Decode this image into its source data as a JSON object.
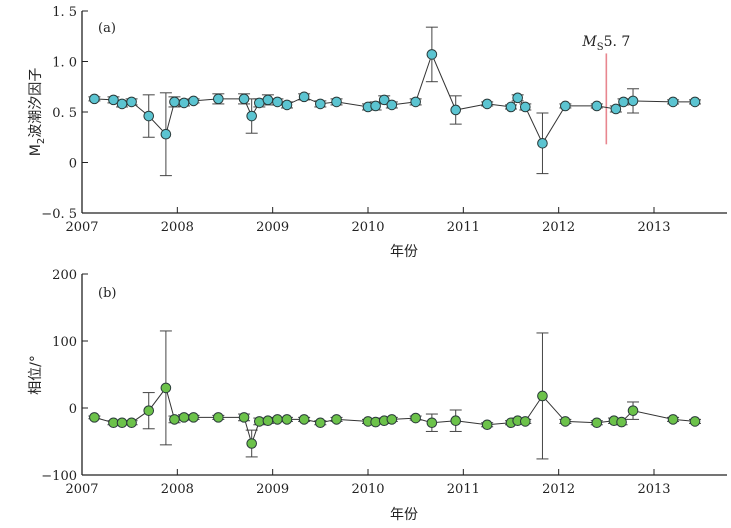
{
  "chart_data": [
    {
      "type": "line",
      "panel_label": "(a)",
      "ylabel_main": "M",
      "ylabel_sub": "2",
      "ylabel_rest": "波潮汐因子",
      "xlabel": "年份",
      "xlim": [
        2007,
        2013.75
      ],
      "ylim": [
        -0.5,
        1.5
      ],
      "yticks": [
        1.5,
        1.0,
        0.5,
        0,
        -0.5
      ],
      "ytick_labels": [
        "1. 5",
        "1. 0",
        "0. 5",
        "0",
        "−0. 5"
      ],
      "xticks": [
        2007,
        2008,
        2009,
        2010,
        2011,
        2012,
        2013
      ],
      "xtick_labels": [
        "2007",
        "2008",
        "2009",
        "2010",
        "2011",
        "2012",
        "2013"
      ],
      "marker_color": "#5bc4d1",
      "annotation": {
        "label_main": "M",
        "label_sub": "S",
        "label_rest": "5. 7",
        "x": 2012.5,
        "y_from": 0.18,
        "y_to": 1.07,
        "color": "#e8868f"
      },
      "series": [
        {
          "name": "M2 tidal factor",
          "points": [
            {
              "x": 2007.13,
              "y": 0.63,
              "err": 0.02
            },
            {
              "x": 2007.33,
              "y": 0.62,
              "err": 0.03
            },
            {
              "x": 2007.42,
              "y": 0.58,
              "err": 0.03
            },
            {
              "x": 2007.52,
              "y": 0.6,
              "err": 0.03
            },
            {
              "x": 2007.7,
              "y": 0.46,
              "err": 0.21
            },
            {
              "x": 2007.88,
              "y": 0.28,
              "err": 0.41
            },
            {
              "x": 2007.97,
              "y": 0.6,
              "err": 0.05
            },
            {
              "x": 2008.07,
              "y": 0.59,
              "err": 0.03
            },
            {
              "x": 2008.17,
              "y": 0.61,
              "err": 0.02
            },
            {
              "x": 2008.43,
              "y": 0.63,
              "err": 0.05
            },
            {
              "x": 2008.7,
              "y": 0.63,
              "err": 0.05
            },
            {
              "x": 2008.78,
              "y": 0.46,
              "err": 0.17
            },
            {
              "x": 2008.86,
              "y": 0.59,
              "err": 0.04
            },
            {
              "x": 2008.95,
              "y": 0.62,
              "err": 0.05
            },
            {
              "x": 2009.05,
              "y": 0.6,
              "err": 0.03
            },
            {
              "x": 2009.15,
              "y": 0.57,
              "err": 0.03
            },
            {
              "x": 2009.33,
              "y": 0.65,
              "err": 0.03
            },
            {
              "x": 2009.5,
              "y": 0.58,
              "err": 0.03
            },
            {
              "x": 2009.67,
              "y": 0.6,
              "err": 0.03
            },
            {
              "x": 2010.0,
              "y": 0.55,
              "err": 0.03
            },
            {
              "x": 2010.08,
              "y": 0.56,
              "err": 0.04
            },
            {
              "x": 2010.17,
              "y": 0.62,
              "err": 0.04
            },
            {
              "x": 2010.25,
              "y": 0.57,
              "err": 0.03
            },
            {
              "x": 2010.5,
              "y": 0.6,
              "err": 0.03
            },
            {
              "x": 2010.67,
              "y": 1.07,
              "err": 0.27
            },
            {
              "x": 2010.92,
              "y": 0.52,
              "err": 0.14
            },
            {
              "x": 2011.25,
              "y": 0.58,
              "err": 0.02
            },
            {
              "x": 2011.5,
              "y": 0.55,
              "err": 0.02
            },
            {
              "x": 2011.57,
              "y": 0.64,
              "err": 0.03
            },
            {
              "x": 2011.65,
              "y": 0.55,
              "err": 0.03
            },
            {
              "x": 2011.83,
              "y": 0.19,
              "err": 0.3
            },
            {
              "x": 2012.07,
              "y": 0.56,
              "err": 0.02
            },
            {
              "x": 2012.4,
              "y": 0.56,
              "err": 0.02
            },
            {
              "x": 2012.6,
              "y": 0.53,
              "err": 0.03
            },
            {
              "x": 2012.68,
              "y": 0.6,
              "err": 0.03
            },
            {
              "x": 2012.78,
              "y": 0.61,
              "err": 0.12
            },
            {
              "x": 2013.2,
              "y": 0.6,
              "err": 0.02
            },
            {
              "x": 2013.43,
              "y": 0.6,
              "err": 0.02
            }
          ]
        }
      ]
    },
    {
      "type": "line",
      "panel_label": "(b)",
      "ylabel": "相位/°",
      "xlabel": "年份",
      "xlim": [
        2007,
        2013.75
      ],
      "ylim": [
        -100,
        200
      ],
      "yticks": [
        200,
        100,
        0,
        -100
      ],
      "ytick_labels": [
        "200",
        "100",
        "0",
        "−100"
      ],
      "xticks": [
        2007,
        2008,
        2009,
        2010,
        2011,
        2012,
        2013
      ],
      "xtick_labels": [
        "2007",
        "2008",
        "2009",
        "2010",
        "2011",
        "2012",
        "2013"
      ],
      "marker_color": "#6cc24a",
      "series": [
        {
          "name": "Phase",
          "points": [
            {
              "x": 2007.13,
              "y": -14,
              "err": 2
            },
            {
              "x": 2007.33,
              "y": -22,
              "err": 3
            },
            {
              "x": 2007.42,
              "y": -22,
              "err": 3
            },
            {
              "x": 2007.52,
              "y": -22,
              "err": 3
            },
            {
              "x": 2007.7,
              "y": -4,
              "err": 27
            },
            {
              "x": 2007.88,
              "y": 30,
              "err": 85
            },
            {
              "x": 2007.97,
              "y": -17,
              "err": 5
            },
            {
              "x": 2008.07,
              "y": -14,
              "err": 4
            },
            {
              "x": 2008.17,
              "y": -14,
              "err": 3
            },
            {
              "x": 2008.43,
              "y": -14,
              "err": 3
            },
            {
              "x": 2008.7,
              "y": -14,
              "err": 5
            },
            {
              "x": 2008.78,
              "y": -53,
              "err": 20
            },
            {
              "x": 2008.86,
              "y": -20,
              "err": 5
            },
            {
              "x": 2008.95,
              "y": -19,
              "err": 4
            },
            {
              "x": 2009.05,
              "y": -17,
              "err": 3
            },
            {
              "x": 2009.15,
              "y": -17,
              "err": 3
            },
            {
              "x": 2009.33,
              "y": -17,
              "err": 3
            },
            {
              "x": 2009.5,
              "y": -22,
              "err": 3
            },
            {
              "x": 2009.67,
              "y": -17,
              "err": 3
            },
            {
              "x": 2010.0,
              "y": -20,
              "err": 3
            },
            {
              "x": 2010.08,
              "y": -21,
              "err": 3
            },
            {
              "x": 2010.17,
              "y": -19,
              "err": 4
            },
            {
              "x": 2010.25,
              "y": -17,
              "err": 3
            },
            {
              "x": 2010.5,
              "y": -15,
              "err": 3
            },
            {
              "x": 2010.67,
              "y": -22,
              "err": 13
            },
            {
              "x": 2010.92,
              "y": -19,
              "err": 16
            },
            {
              "x": 2011.25,
              "y": -25,
              "err": 3
            },
            {
              "x": 2011.5,
              "y": -22,
              "err": 3
            },
            {
              "x": 2011.57,
              "y": -19,
              "err": 4
            },
            {
              "x": 2011.65,
              "y": -20,
              "err": 3
            },
            {
              "x": 2011.83,
              "y": 18,
              "err": 94
            },
            {
              "x": 2012.07,
              "y": -20,
              "err": 3
            },
            {
              "x": 2012.4,
              "y": -22,
              "err": 3
            },
            {
              "x": 2012.58,
              "y": -19,
              "err": 4
            },
            {
              "x": 2012.66,
              "y": -21,
              "err": 4
            },
            {
              "x": 2012.78,
              "y": -4,
              "err": 13
            },
            {
              "x": 2013.2,
              "y": -17,
              "err": 3
            },
            {
              "x": 2013.43,
              "y": -20,
              "err": 3
            }
          ]
        }
      ]
    }
  ]
}
